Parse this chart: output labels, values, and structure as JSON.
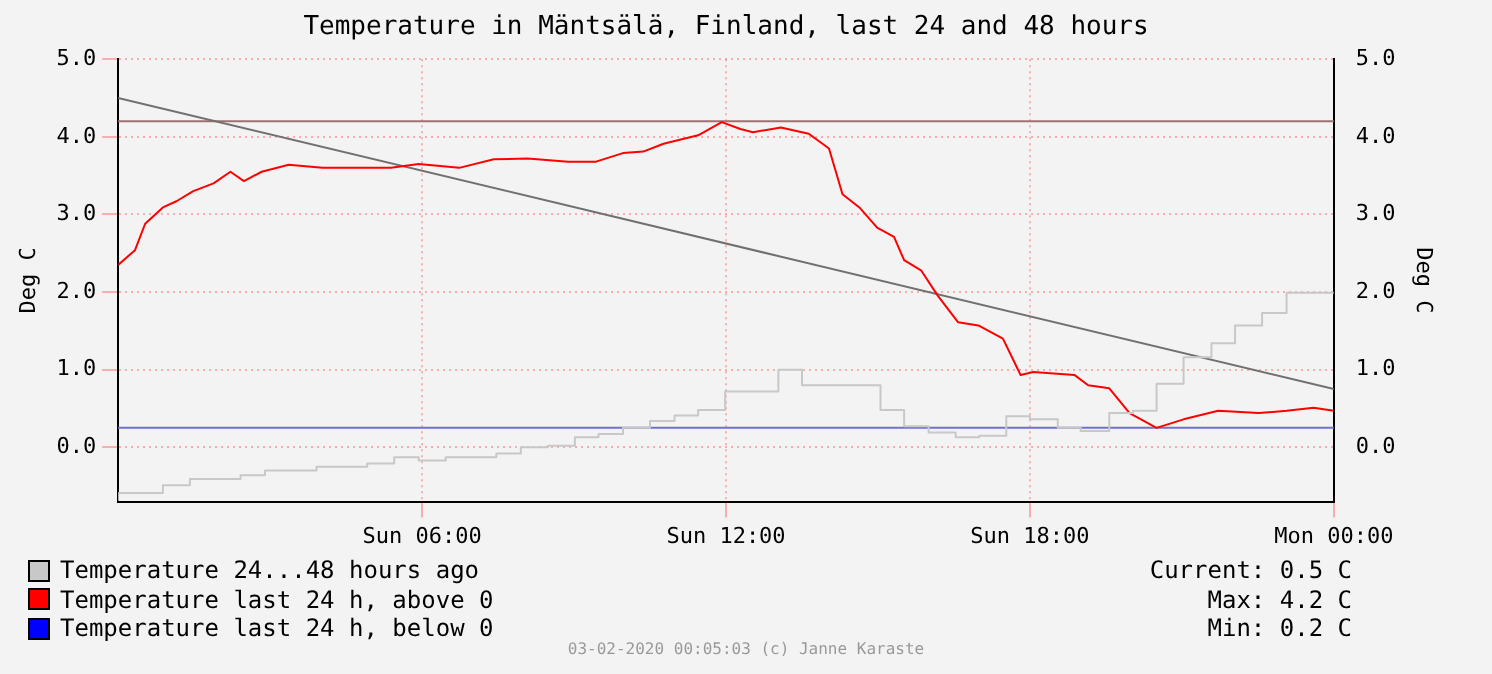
{
  "chart_data": {
    "type": "line",
    "title": "Temperature in Mäntsälä, Finland, last 24 and 48 hours",
    "ylabel": "Deg C",
    "y2label": "Deg C",
    "xlim": [
      "2020-02-02T00:00",
      "2020-02-03T00:00"
    ],
    "xticks": [
      {
        "value": "2020-02-02T06:00",
        "label": "Sun 06:00"
      },
      {
        "value": "2020-02-02T12:00",
        "label": "Sun 12:00"
      },
      {
        "value": "2020-02-02T18:00",
        "label": "Sun 18:00"
      },
      {
        "value": "2020-02-03T00:00",
        "label": "Mon 00:00"
      }
    ],
    "ylim": [
      -0.7,
      5.0
    ],
    "yticks": [
      {
        "value": 0,
        "label": "0.0"
      },
      {
        "value": 1,
        "label": "1.0"
      },
      {
        "value": 2,
        "label": "2.0"
      },
      {
        "value": 3,
        "label": "3.0"
      },
      {
        "value": 4,
        "label": "4.0"
      },
      {
        "value": 5,
        "label": "5.0"
      }
    ],
    "y2lim": [
      -0.7,
      5.0
    ],
    "y2ticks": [
      {
        "value": 0,
        "label": "0.0"
      },
      {
        "value": 1,
        "label": "1.0"
      },
      {
        "value": 2,
        "label": "2.0"
      },
      {
        "value": 3,
        "label": "3.0"
      },
      {
        "value": 4,
        "label": "4.0"
      },
      {
        "value": 5,
        "label": "5.0"
      }
    ],
    "grid": true,
    "legend": "bottom left",
    "series": [
      {
        "name": "Temperature 24...48 hours ago",
        "type": "step",
        "color": "#c8c8c8",
        "x": [
          "2020-02-02T00:00",
          "2020-02-02T00:53",
          "2020-02-02T01:25",
          "2020-02-02T02:25",
          "2020-02-02T02:54",
          "2020-02-02T03:55",
          "2020-02-02T04:55",
          "2020-02-02T05:27",
          "2020-02-02T05:56",
          "2020-02-02T06:28",
          "2020-02-02T07:28",
          "2020-02-02T07:57",
          "2020-02-02T08:29",
          "2020-02-02T09:01",
          "2020-02-02T09:29",
          "2020-02-02T09:58",
          "2020-02-02T10:30",
          "2020-02-02T10:59",
          "2020-02-02T11:27",
          "2020-02-02T11:59",
          "2020-02-02T13:02",
          "2020-02-02T13:30",
          "2020-02-02T15:03",
          "2020-02-02T15:31",
          "2020-02-02T16:00",
          "2020-02-02T16:32",
          "2020-02-02T17:00",
          "2020-02-02T17:32",
          "2020-02-02T18:00",
          "2020-02-02T18:33",
          "2020-02-02T19:00",
          "2020-02-02T19:34",
          "2020-02-02T20:02",
          "2020-02-02T20:30",
          "2020-02-02T21:02",
          "2020-02-02T21:35",
          "2020-02-02T22:03",
          "2020-02-02T22:35",
          "2020-02-02T23:04",
          "2020-02-02T23:32",
          "2020-02-03T00:00"
        ],
        "values": [
          -0.69,
          -0.59,
          -0.49,
          -0.41,
          -0.36,
          -0.3,
          -0.25,
          -0.21,
          -0.13,
          -0.17,
          -0.13,
          -0.08,
          0.0,
          0.02,
          0.13,
          0.17,
          0.25,
          0.34,
          0.41,
          0.48,
          0.72,
          1.0,
          0.8,
          0.48,
          0.27,
          0.19,
          0.13,
          0.15,
          0.4,
          0.36,
          0.25,
          0.21,
          0.44,
          0.47,
          0.82,
          1.16,
          1.34,
          1.57,
          1.73,
          1.99,
          1.99
        ]
      },
      {
        "name": "Temperature last 24 h, above 0",
        "type": "line",
        "color": "#ff0000",
        "x": [
          "2020-02-02T00:00",
          "2020-02-02T00:20",
          "2020-02-02T00:32",
          "2020-02-02T00:53",
          "2020-02-02T01:09",
          "2020-02-02T01:29",
          "2020-02-02T01:53",
          "2020-02-02T02:13",
          "2020-02-02T02:29",
          "2020-02-02T02:50",
          "2020-02-02T03:22",
          "2020-02-02T04:02",
          "2020-02-02T04:43",
          "2020-02-02T05:23",
          "2020-02-02T05:56",
          "2020-02-02T06:44",
          "2020-02-02T07:25",
          "2020-02-02T08:05",
          "2020-02-02T08:53",
          "2020-02-02T09:26",
          "2020-02-02T09:58",
          "2020-02-02T10:22",
          "2020-02-02T10:46",
          "2020-02-02T11:27",
          "2020-02-02T11:55",
          "2020-02-02T12:17",
          "2020-02-02T12:32",
          "2020-02-02T13:05",
          "2020-02-02T13:38",
          "2020-02-02T14:02",
          "2020-02-02T14:18",
          "2020-02-02T14:38",
          "2020-02-02T14:59",
          "2020-02-02T15:19",
          "2020-02-02T15:31",
          "2020-02-02T15:51",
          "2020-02-02T16:11",
          "2020-02-02T16:35",
          "2020-02-02T16:59",
          "2020-02-02T17:28",
          "2020-02-02T17:49",
          "2020-02-02T18:04",
          "2020-02-02T18:53",
          "2020-02-02T19:09",
          "2020-02-02T19:34",
          "2020-02-02T19:58",
          "2020-02-02T20:30",
          "2020-02-02T21:02",
          "2020-02-02T21:43",
          "2020-02-02T22:31",
          "2020-02-02T23:04",
          "2020-02-02T23:36",
          "2020-02-03T00:00"
        ],
        "values": [
          2.35,
          2.54,
          2.88,
          3.09,
          3.17,
          3.3,
          3.4,
          3.55,
          3.43,
          3.55,
          3.64,
          3.6,
          3.6,
          3.6,
          3.65,
          3.6,
          3.71,
          3.72,
          3.68,
          3.68,
          3.79,
          3.81,
          3.91,
          4.02,
          4.19,
          4.1,
          4.06,
          4.12,
          4.04,
          3.85,
          3.26,
          3.09,
          2.83,
          2.71,
          2.41,
          2.28,
          1.95,
          1.61,
          1.57,
          1.4,
          0.93,
          0.97,
          0.93,
          0.8,
          0.76,
          0.44,
          0.25,
          0.36,
          0.47,
          0.44,
          0.47,
          0.51,
          0.47
        ]
      },
      {
        "name": "Temperature last 24 h, below 0",
        "type": "line",
        "color": "#0000ff"
      },
      {
        "type": "line",
        "color": "#707070",
        "x": [
          "2020-02-02T00:00",
          "2020-02-03T00:00"
        ],
        "values": [
          4.5,
          0.75
        ]
      }
    ],
    "ref_lines": [
      {
        "axis": "y",
        "value": 4.2,
        "color": "#a07070"
      },
      {
        "axis": "y",
        "value": 0.25,
        "color": "#7070d0"
      }
    ],
    "annotations": [
      "Current: 0.5 C",
      "Max: 4.2 C",
      "Min: 0.2 C",
      "03-02-2020 00:05:03 (c) Janne Karaste"
    ]
  }
}
